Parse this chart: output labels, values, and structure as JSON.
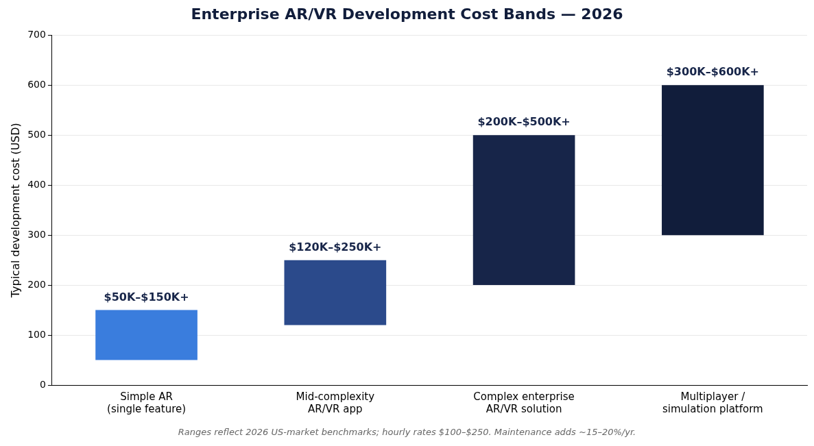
{
  "chart_data": {
    "type": "bar",
    "title": "Enterprise AR/VR Development Cost Bands — 2026",
    "ylabel": "Typical development cost (USD)",
    "categories": [
      "Simple AR (single feature)",
      "Mid-complexity AR/VR app",
      "Complex enterprise AR/VR solution",
      "Multiplayer / simulation platform"
    ],
    "base": [
      50,
      120,
      200,
      300
    ],
    "values": [
      100,
      130,
      300,
      300
    ],
    "colors": [
      "#3a7ddd",
      "#2b4a8b",
      "#172549",
      "#111d3b"
    ],
    "ylim": [
      0,
      700
    ],
    "yticks": [
      0,
      100,
      200,
      300,
      400,
      500,
      600,
      700
    ],
    "grid": "y",
    "legend": false,
    "annotations": [
      {
        "text": "$50K–$150K+",
        "x": "Simple AR (single feature)",
        "y": 150
      },
      {
        "text": "$120K–$250K+",
        "x": "Mid-complexity AR/VR app",
        "y": 250
      },
      {
        "text": "$200K–$500K+",
        "x": "Complex enterprise AR/VR solution",
        "y": 500
      },
      {
        "text": "$300K–$600K+",
        "x": "Multiplayer / simulation platform",
        "y": 600
      },
      "Ranges reflect 2026 US-market benchmarks; hourly rates $100–$250. Maintenance adds ~15–20%/yr."
    ]
  }
}
